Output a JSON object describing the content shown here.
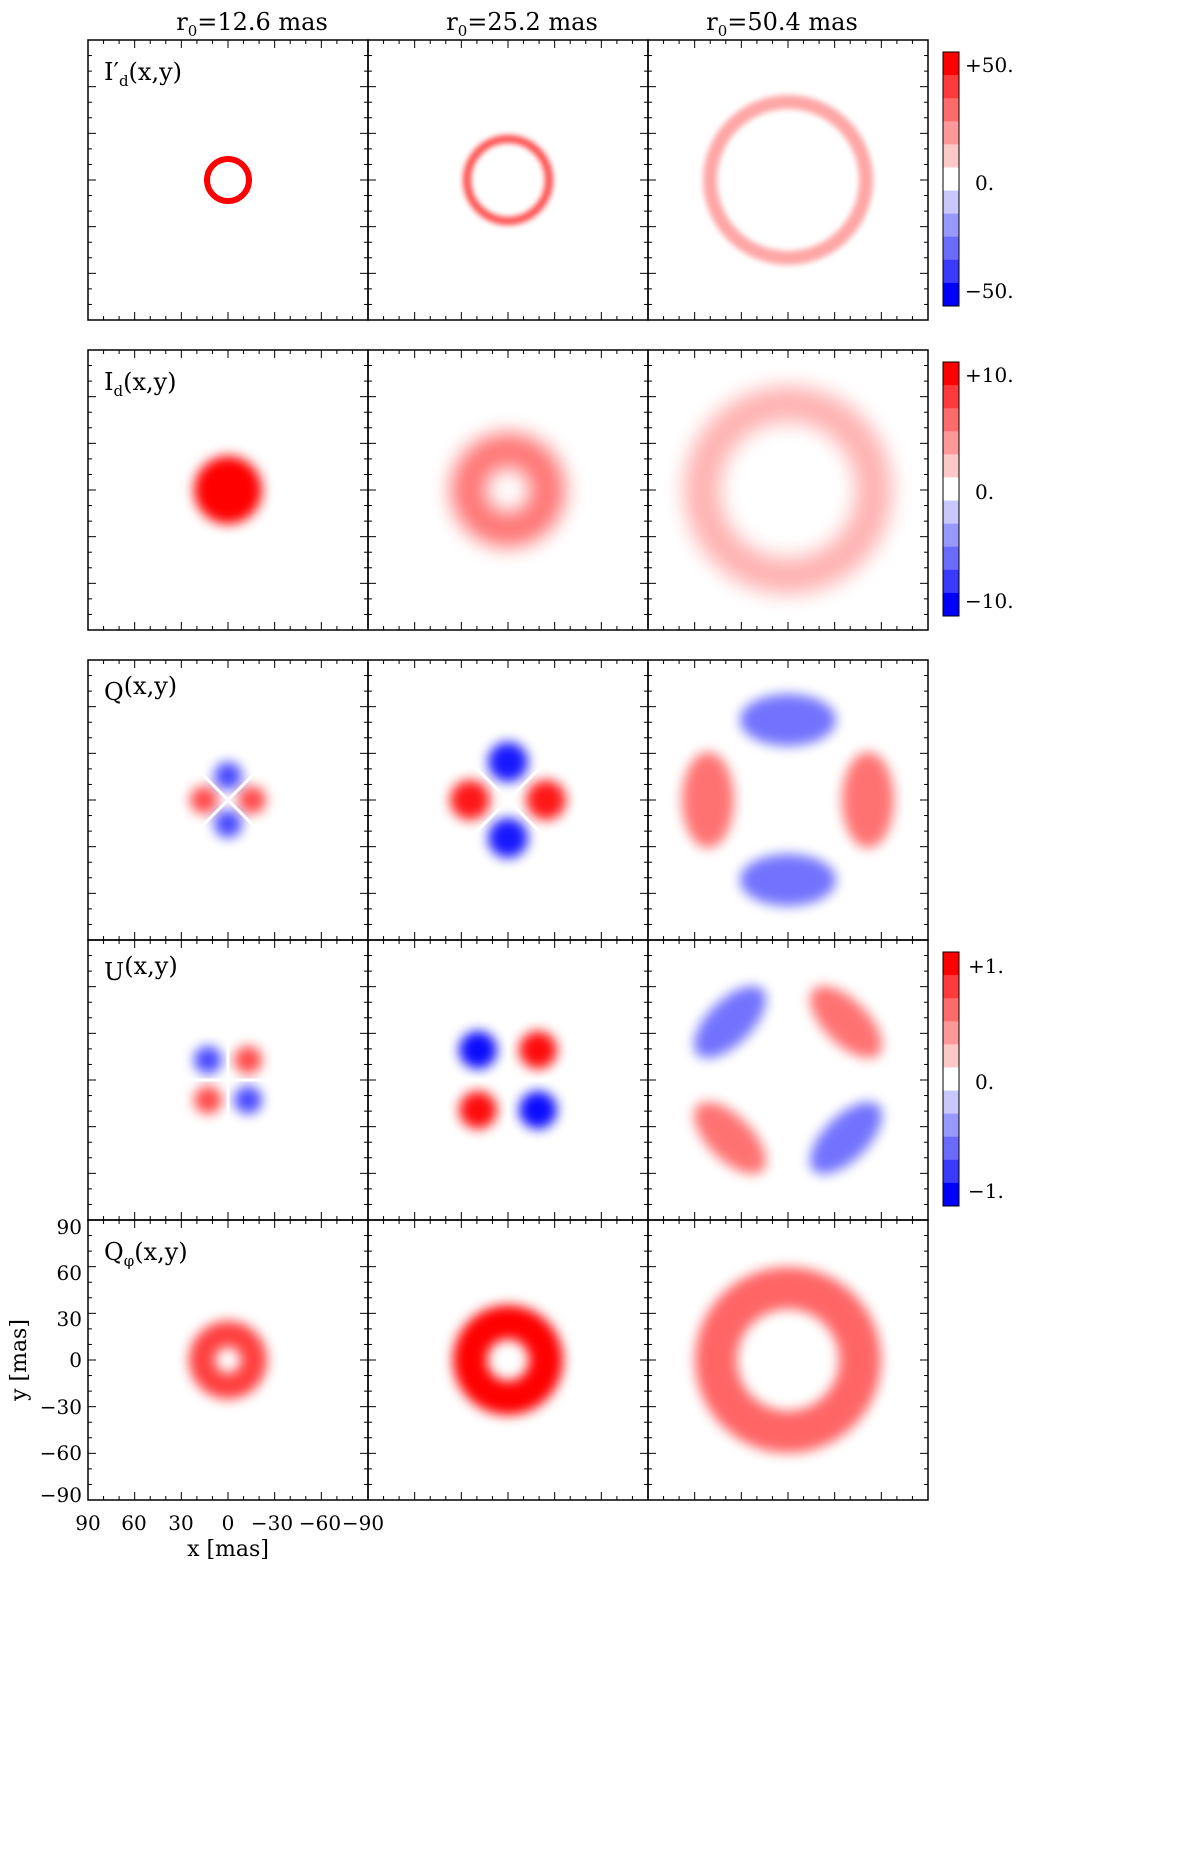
{
  "figure": {
    "columns": [
      {
        "prefix": "r",
        "sub": "0",
        "rest": "=12.6 mas"
      },
      {
        "prefix": "r",
        "sub": "0",
        "rest": "=25.2 mas"
      },
      {
        "prefix": "r",
        "sub": "0",
        "rest": "=50.4   mas"
      }
    ],
    "rows": [
      {
        "label_main": "I′",
        "label_sub": "d",
        "label_args": "(x,y)"
      },
      {
        "label_main": "I",
        "label_sub": "d",
        "label_args": "(x,y)"
      },
      {
        "label_main": "Q",
        "label_sub": "",
        "label_args": "(x,y)"
      },
      {
        "label_main": "U",
        "label_sub": "",
        "label_args": "(x,y)"
      },
      {
        "label_main": "Q",
        "label_sub": "φ",
        "label_args": "(x,y)"
      }
    ],
    "colorbars": [
      {
        "row": 0,
        "top": "+50.",
        "mid": "0.",
        "bottom": "−50."
      },
      {
        "row": 1,
        "top": "+10.",
        "mid": "0.",
        "bottom": "−10."
      },
      {
        "row": 3,
        "top": "+1.",
        "mid": "0.",
        "bottom": "−1."
      }
    ],
    "y_axis": {
      "label": "y [mas]",
      "ticks": [
        "90",
        "60",
        "30",
        "0",
        "−30",
        "−60",
        "−90"
      ]
    },
    "x_axis": {
      "label": "x [mas]",
      "ticks": [
        "90",
        "60",
        "30",
        "0",
        "−30",
        "−60",
        "−90"
      ]
    },
    "colors": {
      "positive": "#ff0000",
      "negative": "#0000ff",
      "zero": "#ffffff",
      "frame": "#000000"
    },
    "colorbar_steps": [
      "#ff0000",
      "#ff3a3a",
      "#ff6a6a",
      "#ff9898",
      "#ffc8c8",
      "#ffffff",
      "#c8c8ff",
      "#9898ff",
      "#6a6aff",
      "#3a3aff",
      "#0000ff"
    ]
  }
}
